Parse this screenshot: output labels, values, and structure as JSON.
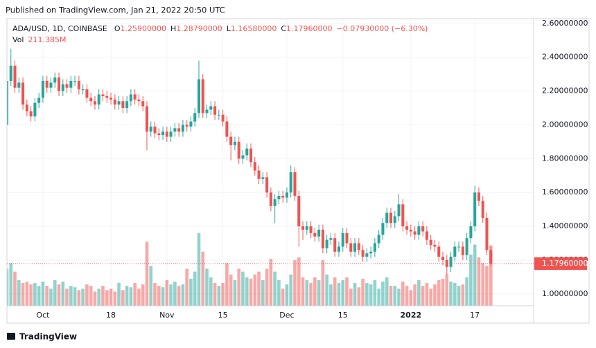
{
  "header": {
    "published": "Published on TradingView.com, Jan 21, 2022 20:50 UTC"
  },
  "footer": {
    "brand": "TradingView"
  },
  "chart_data": {
    "type": "candlestick",
    "symbol": "ADA/USD, 1D, COINBASE",
    "ohlc_legend": [
      {
        "key": "O",
        "text": "1.25900000"
      },
      {
        "key": "H",
        "text": "1.28790000"
      },
      {
        "key": "L",
        "text": "1.16580000"
      },
      {
        "key": "C",
        "text": "1.17960000"
      }
    ],
    "change_text": "−0.07930000 (−6.30%)",
    "volume_title": "Vol",
    "volume_label": "211.385M",
    "up_color": "#26a69a",
    "down_color": "#ef5350",
    "grid": true,
    "ylim": [
      0.93,
      2.628
    ],
    "yticks": [
      {
        "value": 1.0,
        "label": "1.00000000"
      },
      {
        "value": 1.2,
        "label": "1.20000000"
      },
      {
        "value": 1.4,
        "label": "1.40000000"
      },
      {
        "value": 1.6,
        "label": "1.60000000"
      },
      {
        "value": 1.8,
        "label": "1.80000000"
      },
      {
        "value": 2.0,
        "label": "2.00000000"
      },
      {
        "value": 2.2,
        "label": "2.20000000"
      },
      {
        "value": 2.4,
        "label": "2.40000000"
      },
      {
        "value": 2.6,
        "label": "2.60000000"
      }
    ],
    "xlim": [
      0,
      131.7
    ],
    "xticks": [
      {
        "value": 9,
        "label": "Oct"
      },
      {
        "value": 26,
        "label": "18"
      },
      {
        "value": 40,
        "label": "Nov"
      },
      {
        "value": 54,
        "label": "15"
      },
      {
        "value": 70,
        "label": "Dec"
      },
      {
        "value": 84,
        "label": "15"
      },
      {
        "value": 101,
        "label": "2022"
      },
      {
        "value": 117,
        "label": "17"
      }
    ],
    "last_price": {
      "value": 1.1796,
      "label": "1.17960000"
    },
    "volume_lim": [
      0,
      600
    ],
    "open": [
      2.0,
      2.26,
      2.35,
      2.22,
      2.25,
      2.12,
      2.08,
      2.05,
      2.13,
      2.16,
      2.26,
      2.22,
      2.25,
      2.28,
      2.2,
      2.24,
      2.22,
      2.26,
      2.26,
      2.21,
      2.21,
      2.16,
      2.14,
      2.12,
      2.18,
      2.17,
      2.16,
      2.15,
      2.12,
      2.14,
      2.1,
      2.14,
      2.18,
      2.15,
      2.14,
      2.11,
      1.96,
      1.99,
      1.95,
      1.94,
      1.96,
      1.93,
      1.96,
      1.98,
      1.96,
      2.0,
      1.99,
      2.02,
      2.07,
      2.27,
      2.07,
      2.09,
      2.11,
      2.06,
      2.06,
      2.02,
      1.93,
      1.88,
      1.9,
      1.8,
      1.82,
      1.86,
      1.78,
      1.73,
      1.68,
      1.69,
      1.6,
      1.52,
      1.56,
      1.58,
      1.57,
      1.6,
      1.72,
      1.58,
      1.4,
      1.38,
      1.4,
      1.36,
      1.34,
      1.38,
      1.27,
      1.32,
      1.33,
      1.25,
      1.28,
      1.36,
      1.3,
      1.25,
      1.3,
      1.26,
      1.22,
      1.24,
      1.25,
      1.3,
      1.35,
      1.42,
      1.48,
      1.42,
      1.46,
      1.53,
      1.4,
      1.38,
      1.37,
      1.35,
      1.4,
      1.37,
      1.32,
      1.29,
      1.28,
      1.22,
      1.2,
      1.16,
      1.22,
      1.28,
      1.28,
      1.23,
      1.33,
      1.4,
      1.6,
      1.55,
      1.45,
      1.259
    ],
    "high": [
      2.29,
      2.45,
      2.38,
      2.28,
      2.28,
      2.15,
      2.11,
      2.16,
      2.19,
      2.29,
      2.29,
      2.28,
      2.31,
      2.31,
      2.27,
      2.27,
      2.29,
      2.29,
      2.29,
      2.24,
      2.24,
      2.19,
      2.17,
      2.21,
      2.21,
      2.2,
      2.19,
      2.18,
      2.17,
      2.17,
      2.17,
      2.21,
      2.21,
      2.18,
      2.17,
      2.14,
      2.02,
      2.02,
      1.98,
      1.99,
      1.99,
      1.99,
      2.01,
      2.01,
      2.03,
      2.03,
      2.05,
      2.1,
      2.38,
      2.3,
      2.12,
      2.14,
      2.14,
      2.09,
      2.09,
      2.05,
      1.96,
      1.93,
      1.93,
      1.85,
      1.89,
      1.89,
      1.81,
      1.76,
      1.72,
      1.72,
      1.63,
      1.59,
      1.61,
      1.61,
      1.63,
      1.76,
      1.75,
      1.61,
      1.43,
      1.43,
      1.43,
      1.39,
      1.41,
      1.41,
      1.35,
      1.36,
      1.36,
      1.31,
      1.39,
      1.39,
      1.33,
      1.33,
      1.33,
      1.29,
      1.27,
      1.28,
      1.33,
      1.38,
      1.45,
      1.51,
      1.51,
      1.49,
      1.59,
      1.56,
      1.43,
      1.41,
      1.4,
      1.43,
      1.43,
      1.4,
      1.35,
      1.32,
      1.31,
      1.25,
      1.23,
      1.25,
      1.31,
      1.31,
      1.31,
      1.36,
      1.43,
      1.64,
      1.63,
      1.58,
      1.48,
      1.2879
    ],
    "low": [
      1.97,
      2.23,
      2.19,
      2.19,
      2.09,
      2.05,
      2.02,
      2.02,
      2.1,
      2.13,
      2.19,
      2.19,
      2.22,
      2.17,
      2.17,
      2.19,
      2.19,
      2.23,
      2.18,
      2.18,
      2.13,
      2.11,
      2.09,
      2.09,
      2.14,
      2.13,
      2.12,
      2.09,
      2.09,
      2.07,
      2.07,
      2.11,
      2.12,
      2.11,
      2.08,
      1.85,
      1.93,
      1.92,
      1.91,
      1.91,
      1.9,
      1.9,
      1.93,
      1.93,
      1.93,
      1.96,
      1.96,
      1.99,
      2.04,
      2.04,
      2.04,
      2.06,
      2.03,
      2.03,
      1.99,
      1.9,
      1.79,
      1.85,
      1.77,
      1.77,
      1.79,
      1.75,
      1.7,
      1.65,
      1.65,
      1.57,
      1.49,
      1.42,
      1.53,
      1.54,
      1.54,
      1.57,
      1.55,
      1.28,
      1.32,
      1.35,
      1.33,
      1.31,
      1.31,
      1.24,
      1.24,
      1.29,
      1.22,
      1.22,
      1.25,
      1.27,
      1.22,
      1.22,
      1.23,
      1.19,
      1.19,
      1.21,
      1.22,
      1.27,
      1.32,
      1.39,
      1.39,
      1.39,
      1.43,
      1.37,
      1.35,
      1.34,
      1.32,
      1.32,
      1.34,
      1.29,
      1.26,
      1.25,
      1.19,
      1.17,
      1.11,
      1.13,
      1.19,
      1.25,
      1.2,
      1.2,
      1.3,
      1.37,
      1.52,
      1.42,
      1.23,
      1.1658
    ],
    "close": [
      2.26,
      2.35,
      2.22,
      2.25,
      2.12,
      2.08,
      2.05,
      2.13,
      2.16,
      2.26,
      2.22,
      2.25,
      2.28,
      2.2,
      2.24,
      2.22,
      2.26,
      2.26,
      2.21,
      2.21,
      2.16,
      2.14,
      2.12,
      2.18,
      2.17,
      2.16,
      2.15,
      2.12,
      2.14,
      2.1,
      2.14,
      2.18,
      2.15,
      2.14,
      2.11,
      1.96,
      1.99,
      1.95,
      1.94,
      1.96,
      1.93,
      1.96,
      1.98,
      1.96,
      2.0,
      1.99,
      2.02,
      2.07,
      2.27,
      2.07,
      2.09,
      2.11,
      2.06,
      2.06,
      2.02,
      1.93,
      1.88,
      1.9,
      1.8,
      1.82,
      1.86,
      1.78,
      1.73,
      1.68,
      1.69,
      1.6,
      1.52,
      1.56,
      1.58,
      1.57,
      1.6,
      1.72,
      1.58,
      1.4,
      1.38,
      1.4,
      1.36,
      1.34,
      1.38,
      1.27,
      1.32,
      1.33,
      1.25,
      1.28,
      1.36,
      1.3,
      1.25,
      1.3,
      1.26,
      1.22,
      1.24,
      1.25,
      1.3,
      1.35,
      1.42,
      1.48,
      1.42,
      1.46,
      1.53,
      1.4,
      1.38,
      1.37,
      1.35,
      1.4,
      1.37,
      1.32,
      1.29,
      1.28,
      1.22,
      1.2,
      1.16,
      1.22,
      1.28,
      1.28,
      1.23,
      1.33,
      1.4,
      1.6,
      1.55,
      1.45,
      1.259,
      1.1796
    ],
    "volume": [
      130,
      150,
      120,
      90,
      80,
      85,
      75,
      80,
      70,
      85,
      70,
      60,
      90,
      75,
      85,
      60,
      70,
      65,
      55,
      60,
      75,
      70,
      50,
      60,
      70,
      55,
      60,
      50,
      80,
      55,
      70,
      65,
      80,
      60,
      75,
      225,
      140,
      80,
      70,
      65,
      90,
      75,
      85,
      70,
      75,
      130,
      95,
      120,
      255,
      190,
      130,
      100,
      80,
      70,
      80,
      150,
      110,
      90,
      130,
      120,
      100,
      95,
      110,
      120,
      90,
      130,
      165,
      120,
      90,
      60,
      75,
      110,
      160,
      170,
      100,
      90,
      80,
      100,
      90,
      160,
      110,
      75,
      100,
      80,
      90,
      100,
      60,
      80,
      65,
      95,
      80,
      75,
      90,
      60,
      85,
      100,
      70,
      70,
      60,
      85,
      70,
      55,
      75,
      90,
      70,
      80,
      60,
      75,
      90,
      95,
      110,
      85,
      80,
      70,
      75,
      100,
      180,
      215,
      170,
      150,
      140,
      211.385
    ]
  }
}
